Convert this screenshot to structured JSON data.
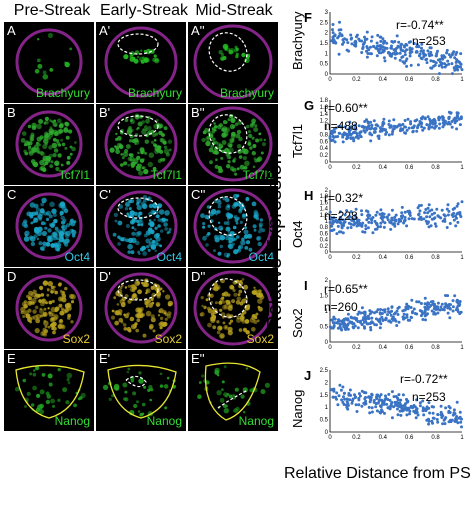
{
  "columns": [
    "Pre-Streak",
    "Early-Streak",
    "Mid-Streak"
  ],
  "rows": [
    {
      "labels": [
        "A",
        "A'",
        "A''"
      ],
      "marker": "Brachyury",
      "marker_color": "#33dd33",
      "signal_color": "#22bb22"
    },
    {
      "labels": [
        "B",
        "B'",
        "B''"
      ],
      "marker": "Tcf7l1",
      "marker_color": "#33dd33",
      "signal_color": "#2fae2f"
    },
    {
      "labels": [
        "C",
        "C'",
        "C''"
      ],
      "marker": "Oct4",
      "marker_color": "#33c8e6",
      "signal_color": "#1aa7c9"
    },
    {
      "labels": [
        "D",
        "D'",
        "D''"
      ],
      "marker": "Sox2",
      "marker_color": "#e6cc33",
      "signal_color": "#b8a11f"
    },
    {
      "labels": [
        "E",
        "E'",
        "E''"
      ],
      "marker": "Nanog",
      "marker_color": "#33dd33",
      "signal_color": "#22a322"
    }
  ],
  "membrane_color": "#9b2aa0",
  "axis_title_y": "Relative Expression",
  "axis_title_x": "Relative Distance from PS",
  "chart_data": [
    {
      "panel": "F",
      "type": "scatter",
      "ylabel": "Brachyury",
      "stat_r": "r=-0.74**",
      "stat_n": "n=253",
      "xlim": [
        0,
        1
      ],
      "ylim": [
        0,
        3
      ],
      "yticks": [
        "0",
        "0.5",
        "1",
        "1.5",
        "2",
        "2.5",
        "3"
      ],
      "xticks": [
        "0",
        "0.2",
        "0.4",
        "0.6",
        "0.8",
        "1"
      ],
      "n": 253,
      "trend": [
        1.8,
        -1.3
      ],
      "noise": 0.35,
      "color": "#3a73c4"
    },
    {
      "panel": "G",
      "type": "scatter",
      "ylabel": "Tcf7l1",
      "stat_r": "r=0.60**",
      "stat_n": "n=488",
      "xlim": [
        0,
        1
      ],
      "ylim": [
        0,
        1.8
      ],
      "yticks": [
        "0",
        "0.2",
        "0.4",
        "0.6",
        "0.8",
        "1",
        "1.2",
        "1.4",
        "1.6",
        "1.8"
      ],
      "xticks": [
        "0",
        "0.2",
        "0.4",
        "0.6",
        "0.8",
        "1"
      ],
      "n": 488,
      "trend": [
        0.8,
        0.45
      ],
      "noise": 0.15,
      "color": "#3a73c4"
    },
    {
      "panel": "H",
      "type": "scatter",
      "ylabel": "Oct4",
      "stat_r": "r=0.32*",
      "stat_n": "n=228",
      "xlim": [
        0,
        1
      ],
      "ylim": [
        0,
        2
      ],
      "yticks": [
        "0",
        "0.2",
        "0.4",
        "0.6",
        "0.8",
        "1",
        "1.2",
        "1.4",
        "1.6",
        "1.8",
        "2"
      ],
      "xticks": [
        "0",
        "0.2",
        "0.4",
        "0.6",
        "0.8",
        "1"
      ],
      "n": 228,
      "trend": [
        0.9,
        0.35
      ],
      "noise": 0.22,
      "color": "#3a73c4"
    },
    {
      "panel": "I",
      "type": "scatter",
      "ylabel": "Sox2",
      "stat_r": "r=0.65**",
      "stat_n": "n=260",
      "xlim": [
        0,
        1
      ],
      "ylim": [
        0,
        2
      ],
      "yticks": [
        "0",
        "0.5",
        "1",
        "1.5",
        "2"
      ],
      "xticks": [
        "0",
        "0.2",
        "0.4",
        "0.6",
        "0.8",
        "1"
      ],
      "n": 260,
      "trend": [
        0.55,
        0.65
      ],
      "noise": 0.2,
      "color": "#3a73c4"
    },
    {
      "panel": "J",
      "type": "scatter",
      "ylabel": "Nanog",
      "stat_r": "r=-0.72**",
      "stat_n": "n=253",
      "xlim": [
        0,
        1
      ],
      "ylim": [
        0,
        2.5
      ],
      "yticks": [
        "0",
        "0.5",
        "1",
        "1.5",
        "2",
        "2.5"
      ],
      "xticks": [
        "0",
        "0.2",
        "0.4",
        "0.6",
        "0.8",
        "1"
      ],
      "n": 253,
      "trend": [
        1.5,
        -0.9
      ],
      "noise": 0.28,
      "color": "#3a73c4"
    }
  ]
}
